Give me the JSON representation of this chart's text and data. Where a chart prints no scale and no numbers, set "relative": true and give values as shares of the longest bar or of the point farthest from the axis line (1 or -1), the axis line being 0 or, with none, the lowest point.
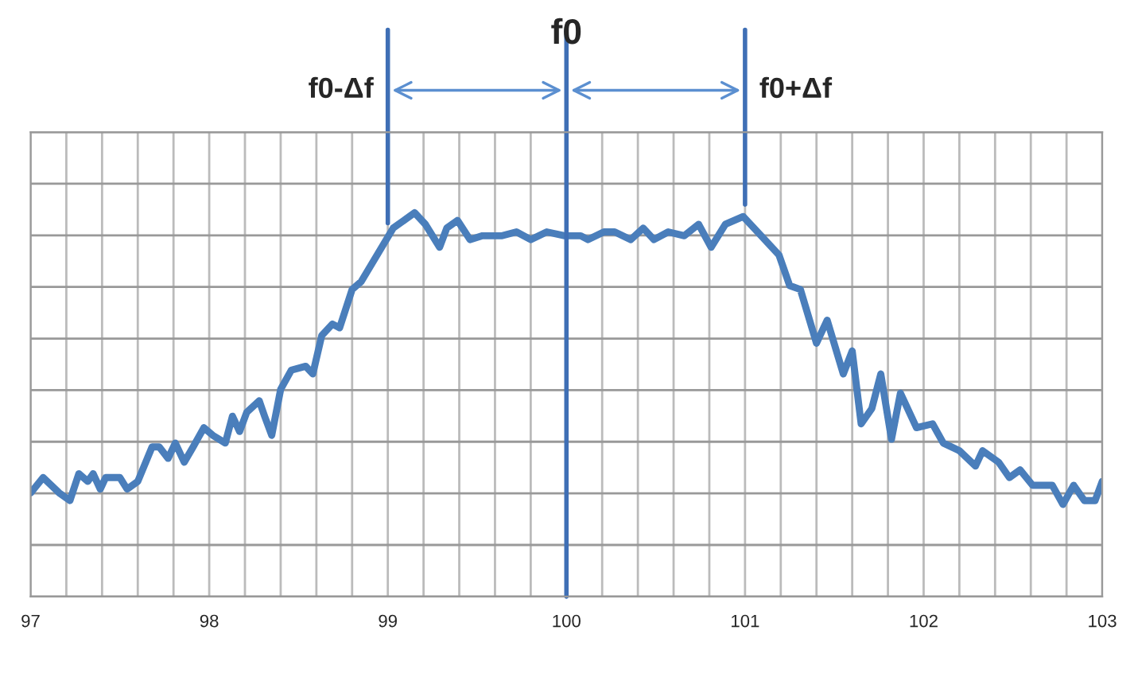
{
  "chart_data": {
    "type": "line",
    "relative": true,
    "grid": true,
    "marker": "none",
    "line_style": "solid",
    "xlim": [
      97,
      103
    ],
    "xticks": [
      97,
      98,
      99,
      100,
      101,
      102,
      103
    ],
    "series": [
      {
        "color": "#4a7ebb",
        "x": [
          97.0,
          97.07,
          97.16,
          97.22,
          97.27,
          97.32,
          97.35,
          97.39,
          97.42,
          97.5,
          97.54,
          97.6,
          97.68,
          97.72,
          97.77,
          97.81,
          97.86,
          97.91,
          97.97,
          98.02,
          98.09,
          98.13,
          98.17,
          98.21,
          98.28,
          98.31,
          98.35,
          98.4,
          98.46,
          98.54,
          98.58,
          98.63,
          98.69,
          98.73,
          98.8,
          98.85,
          98.94,
          99.03,
          99.09,
          99.15,
          99.21,
          99.29,
          99.33,
          99.39,
          99.46,
          99.53,
          99.64,
          99.72,
          99.8,
          99.89,
          99.99,
          100.08,
          100.12,
          100.21,
          100.27,
          100.36,
          100.43,
          100.49,
          100.57,
          100.66,
          100.74,
          100.81,
          100.89,
          100.99,
          101.07,
          101.19,
          101.25,
          101.31,
          101.4,
          101.46,
          101.55,
          101.6,
          101.65,
          101.71,
          101.76,
          101.82,
          101.87,
          101.96,
          102.05,
          102.11,
          102.2,
          102.29,
          102.33,
          102.42,
          102.48,
          102.54,
          102.61,
          102.72,
          102.78,
          102.84,
          102.9,
          102.96,
          103.0
        ],
        "values": [
          0.27,
          0.31,
          0.27,
          0.25,
          0.32,
          0.3,
          0.32,
          0.28,
          0.31,
          0.31,
          0.28,
          0.3,
          0.39,
          0.39,
          0.36,
          0.4,
          0.35,
          0.39,
          0.44,
          0.42,
          0.4,
          0.47,
          0.43,
          0.48,
          0.51,
          0.47,
          0.42,
          0.54,
          0.59,
          0.6,
          0.58,
          0.68,
          0.71,
          0.7,
          0.8,
          0.82,
          0.89,
          0.96,
          0.98,
          1,
          0.97,
          0.91,
          0.96,
          0.98,
          0.93,
          0.94,
          0.94,
          0.95,
          0.93,
          0.95,
          0.94,
          0.94,
          0.93,
          0.95,
          0.95,
          0.93,
          0.96,
          0.93,
          0.95,
          0.94,
          0.97,
          0.91,
          0.97,
          0.99,
          0.95,
          0.89,
          0.81,
          0.8,
          0.66,
          0.72,
          0.58,
          0.64,
          0.45,
          0.49,
          0.58,
          0.41,
          0.53,
          0.44,
          0.45,
          0.4,
          0.38,
          0.34,
          0.38,
          0.35,
          0.31,
          0.33,
          0.29,
          0.29,
          0.24,
          0.29,
          0.25,
          0.25,
          0.3
        ]
      }
    ],
    "ref_lines": [
      {
        "axis": "x",
        "value": 99,
        "label": "f0-Δf",
        "color": "#3f6fb5"
      },
      {
        "axis": "x",
        "value": 100,
        "label": "f0",
        "color": "#3f6fb5"
      },
      {
        "axis": "x",
        "value": 101,
        "label": "f0+Δf",
        "color": "#3f6fb5"
      }
    ]
  }
}
